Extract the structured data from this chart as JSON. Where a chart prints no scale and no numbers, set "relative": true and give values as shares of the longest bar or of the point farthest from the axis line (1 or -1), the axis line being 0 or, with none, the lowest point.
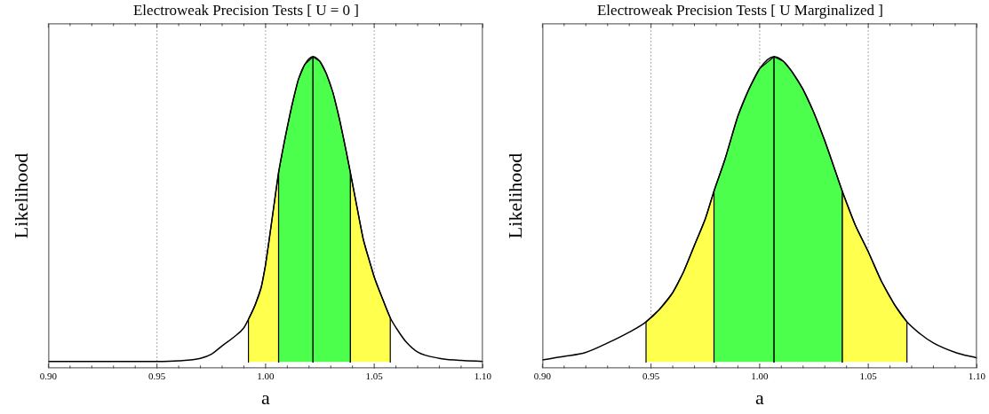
{
  "chart_data": [
    {
      "type": "line",
      "title": "Electroweak Precision Tests [ U = 0 ]",
      "xlabel": "a",
      "ylabel": "Likelihood",
      "relative": true,
      "xlim": [
        0.9,
        1.1
      ],
      "xticks": [
        {
          "value": 0.9,
          "label": "0.90"
        },
        {
          "value": 0.91,
          "label": null
        },
        {
          "value": 0.92,
          "label": null
        },
        {
          "value": 0.93,
          "label": null
        },
        {
          "value": 0.94,
          "label": null
        },
        {
          "value": 0.95,
          "label": "0.95"
        },
        {
          "value": 0.96,
          "label": null
        },
        {
          "value": 0.97,
          "label": null
        },
        {
          "value": 0.98,
          "label": null
        },
        {
          "value": 0.99,
          "label": null
        },
        {
          "value": 1.0,
          "label": "1.00"
        },
        {
          "value": 1.01,
          "label": null
        },
        {
          "value": 1.02,
          "label": null
        },
        {
          "value": 1.03,
          "label": null
        },
        {
          "value": 1.04,
          "label": null
        },
        {
          "value": 1.05,
          "label": "1.05"
        },
        {
          "value": 1.06,
          "label": null
        },
        {
          "value": 1.07,
          "label": null
        },
        {
          "value": 1.08,
          "label": null
        },
        {
          "value": 1.09,
          "label": null
        },
        {
          "value": 1.1,
          "label": "1.10"
        }
      ],
      "series": [
        {
          "type": "area",
          "color": "#ffff4d",
          "x": [
            0.9921,
            0.9921,
            0.995,
            0.998,
            1.0,
            1.003,
            1.006,
            1.006
          ],
          "values": [
            0.02,
            0.157,
            0.2,
            0.26,
            0.333,
            0.48,
            0.629,
            0.02
          ]
        },
        {
          "type": "area",
          "color": "#ffff4d",
          "x": [
            1.039,
            1.039,
            1.042,
            1.045,
            1.048,
            1.05,
            1.054,
            1.0574,
            1.0574
          ],
          "values": [
            0.02,
            0.629,
            0.52,
            0.413,
            0.34,
            0.293,
            0.22,
            0.162,
            0.02
          ]
        },
        {
          "type": "area",
          "color": "#4dff4d",
          "x": [
            1.006,
            1.006,
            1.009,
            1.012,
            1.015,
            1.018,
            1.0218,
            1.025,
            1.028,
            1.031,
            1.034,
            1.037,
            1.039,
            1.039
          ],
          "values": [
            0.02,
            0.629,
            0.74,
            0.84,
            0.925,
            0.975,
            1.0,
            0.985,
            0.945,
            0.885,
            0.8,
            0.7,
            0.629,
            0.02
          ]
        },
        {
          "type": "line",
          "color": "#000000",
          "x": [
            1.0218,
            1.0218
          ],
          "values": [
            0.02,
            1.0
          ]
        },
        {
          "type": "line",
          "color": "#000000",
          "x": [
            0.9,
            0.95,
            0.96,
            0.97,
            0.975,
            0.98,
            0.985,
            0.99,
            0.9921,
            0.995,
            0.998,
            1.0,
            1.003,
            1.006,
            1.009,
            1.012,
            1.015,
            1.018,
            1.0218,
            1.025,
            1.028,
            1.031,
            1.034,
            1.037,
            1.039,
            1.042,
            1.045,
            1.048,
            1.05,
            1.054,
            1.0574,
            1.061,
            1.065,
            1.07,
            1.08,
            1.09,
            1.1
          ],
          "values": [
            0.022,
            0.022,
            0.024,
            0.032,
            0.045,
            0.072,
            0.098,
            0.13,
            0.157,
            0.2,
            0.26,
            0.333,
            0.48,
            0.629,
            0.74,
            0.84,
            0.925,
            0.975,
            1.0,
            0.985,
            0.945,
            0.885,
            0.8,
            0.7,
            0.629,
            0.52,
            0.413,
            0.34,
            0.293,
            0.22,
            0.162,
            0.12,
            0.082,
            0.052,
            0.032,
            0.025,
            0.022
          ]
        }
      ],
      "ref_lines": [
        {
          "axis": "x",
          "value": 0.95,
          "color": "#555555",
          "line_style": "dotted"
        },
        {
          "axis": "x",
          "value": 1.0,
          "color": "#555555",
          "line_style": "dotted"
        },
        {
          "axis": "x",
          "value": 1.05,
          "color": "#555555",
          "line_style": "dotted"
        }
      ],
      "marker": "none",
      "legend": false
    },
    {
      "type": "line",
      "title": "Electroweak Precision Tests [ U Marginalized ]",
      "xlabel": "a",
      "ylabel": "Likelihood",
      "relative": true,
      "xlim": [
        0.9,
        1.1
      ],
      "xticks": [
        {
          "value": 0.9,
          "label": "0.90"
        },
        {
          "value": 0.91,
          "label": null
        },
        {
          "value": 0.92,
          "label": null
        },
        {
          "value": 0.93,
          "label": null
        },
        {
          "value": 0.94,
          "label": null
        },
        {
          "value": 0.95,
          "label": "0.95"
        },
        {
          "value": 0.96,
          "label": null
        },
        {
          "value": 0.97,
          "label": null
        },
        {
          "value": 0.98,
          "label": null
        },
        {
          "value": 0.99,
          "label": null
        },
        {
          "value": 1.0,
          "label": "1.00"
        },
        {
          "value": 1.01,
          "label": null
        },
        {
          "value": 1.02,
          "label": null
        },
        {
          "value": 1.03,
          "label": null
        },
        {
          "value": 1.04,
          "label": null
        },
        {
          "value": 1.05,
          "label": "1.05"
        },
        {
          "value": 1.06,
          "label": null
        },
        {
          "value": 1.07,
          "label": null
        },
        {
          "value": 1.08,
          "label": null
        },
        {
          "value": 1.09,
          "label": null
        },
        {
          "value": 1.1,
          "label": "1.10"
        }
      ],
      "series": [
        {
          "type": "area",
          "color": "#ffff4d",
          "x": [
            0.9477,
            0.9477,
            0.954,
            0.96,
            0.965,
            0.97,
            0.975,
            0.979,
            0.979
          ],
          "values": [
            0.02,
            0.149,
            0.19,
            0.243,
            0.31,
            0.395,
            0.48,
            0.569,
            0.02
          ]
        },
        {
          "type": "area",
          "color": "#ffff4d",
          "x": [
            1.038,
            1.038,
            1.044,
            1.05,
            1.056,
            1.062,
            1.0678,
            1.0678
          ],
          "values": [
            0.02,
            0.569,
            0.46,
            0.374,
            0.28,
            0.205,
            0.149,
            0.02
          ]
        },
        {
          "type": "area",
          "color": "#4dff4d",
          "x": [
            0.979,
            0.979,
            0.984,
            0.99,
            0.995,
            1.0,
            1.0066,
            1.011,
            1.015,
            1.02,
            1.025,
            1.03,
            1.034,
            1.038,
            1.038
          ],
          "values": [
            0.02,
            0.569,
            0.67,
            0.81,
            0.895,
            0.962,
            1.0,
            0.985,
            0.951,
            0.895,
            0.82,
            0.73,
            0.65,
            0.569,
            0.02
          ]
        },
        {
          "type": "line",
          "color": "#000000",
          "x": [
            1.0066,
            1.0066
          ],
          "values": [
            0.02,
            1.0
          ]
        },
        {
          "type": "line",
          "color": "#000000",
          "x": [
            0.9,
            0.91,
            0.92,
            0.93,
            0.94,
            0.9477,
            0.954,
            0.96,
            0.965,
            0.97,
            0.975,
            0.979,
            0.984,
            0.99,
            0.995,
            1.0,
            1.0066,
            1.011,
            1.015,
            1.02,
            1.025,
            1.03,
            1.034,
            1.038,
            1.044,
            1.05,
            1.056,
            1.062,
            1.0678,
            1.074,
            1.08,
            1.09,
            1.1
          ],
          "values": [
            0.027,
            0.038,
            0.051,
            0.081,
            0.116,
            0.149,
            0.19,
            0.243,
            0.31,
            0.395,
            0.48,
            0.569,
            0.67,
            0.81,
            0.895,
            0.962,
            1.0,
            0.985,
            0.951,
            0.895,
            0.82,
            0.73,
            0.65,
            0.569,
            0.46,
            0.374,
            0.28,
            0.205,
            0.149,
            0.11,
            0.081,
            0.051,
            0.033
          ]
        }
      ],
      "ref_lines": [
        {
          "axis": "x",
          "value": 0.95,
          "color": "#555555",
          "line_style": "dotted"
        },
        {
          "axis": "x",
          "value": 1.0,
          "color": "#555555",
          "line_style": "dotted"
        },
        {
          "axis": "x",
          "value": 1.05,
          "color": "#555555",
          "line_style": "dotted"
        }
      ],
      "marker": "none",
      "legend": false
    }
  ]
}
